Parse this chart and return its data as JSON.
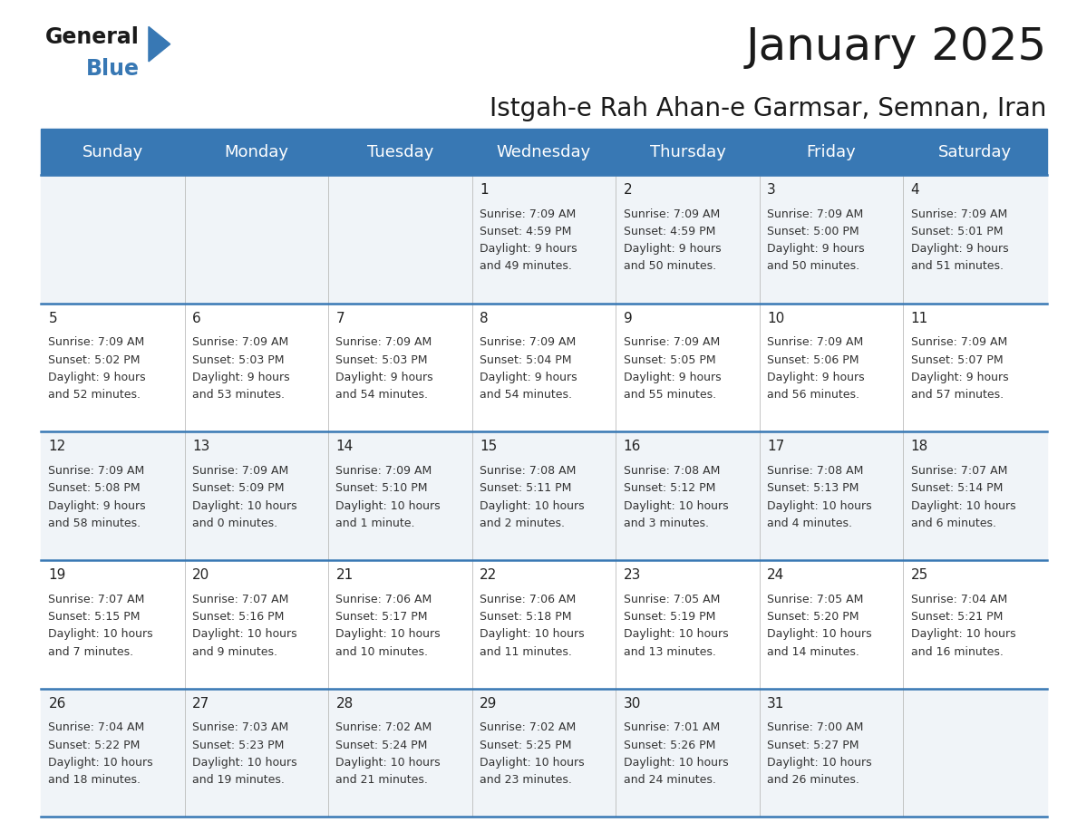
{
  "title": "January 2025",
  "subtitle": "Istgah-e Rah Ahan-e Garmsar, Semnan, Iran",
  "header_color": "#3878b4",
  "header_text_color": "#ffffff",
  "days_of_week": [
    "Sunday",
    "Monday",
    "Tuesday",
    "Wednesday",
    "Thursday",
    "Friday",
    "Saturday"
  ],
  "background_color": "#ffffff",
  "cell_bg_even": "#f0f4f8",
  "cell_bg_odd": "#ffffff",
  "separator_color": "#3878b4",
  "day_number_color": "#222222",
  "info_text_color": "#333333",
  "calendar_data": [
    {
      "day": 1,
      "col": 3,
      "row": 0,
      "sunrise": "7:09 AM",
      "sunset": "4:59 PM",
      "daylight_hours": 9,
      "daylight_minutes": 49
    },
    {
      "day": 2,
      "col": 4,
      "row": 0,
      "sunrise": "7:09 AM",
      "sunset": "4:59 PM",
      "daylight_hours": 9,
      "daylight_minutes": 50
    },
    {
      "day": 3,
      "col": 5,
      "row": 0,
      "sunrise": "7:09 AM",
      "sunset": "5:00 PM",
      "daylight_hours": 9,
      "daylight_minutes": 50
    },
    {
      "day": 4,
      "col": 6,
      "row": 0,
      "sunrise": "7:09 AM",
      "sunset": "5:01 PM",
      "daylight_hours": 9,
      "daylight_minutes": 51
    },
    {
      "day": 5,
      "col": 0,
      "row": 1,
      "sunrise": "7:09 AM",
      "sunset": "5:02 PM",
      "daylight_hours": 9,
      "daylight_minutes": 52
    },
    {
      "day": 6,
      "col": 1,
      "row": 1,
      "sunrise": "7:09 AM",
      "sunset": "5:03 PM",
      "daylight_hours": 9,
      "daylight_minutes": 53
    },
    {
      "day": 7,
      "col": 2,
      "row": 1,
      "sunrise": "7:09 AM",
      "sunset": "5:03 PM",
      "daylight_hours": 9,
      "daylight_minutes": 54
    },
    {
      "day": 8,
      "col": 3,
      "row": 1,
      "sunrise": "7:09 AM",
      "sunset": "5:04 PM",
      "daylight_hours": 9,
      "daylight_minutes": 54
    },
    {
      "day": 9,
      "col": 4,
      "row": 1,
      "sunrise": "7:09 AM",
      "sunset": "5:05 PM",
      "daylight_hours": 9,
      "daylight_minutes": 55
    },
    {
      "day": 10,
      "col": 5,
      "row": 1,
      "sunrise": "7:09 AM",
      "sunset": "5:06 PM",
      "daylight_hours": 9,
      "daylight_minutes": 56
    },
    {
      "day": 11,
      "col": 6,
      "row": 1,
      "sunrise": "7:09 AM",
      "sunset": "5:07 PM",
      "daylight_hours": 9,
      "daylight_minutes": 57
    },
    {
      "day": 12,
      "col": 0,
      "row": 2,
      "sunrise": "7:09 AM",
      "sunset": "5:08 PM",
      "daylight_hours": 9,
      "daylight_minutes": 58
    },
    {
      "day": 13,
      "col": 1,
      "row": 2,
      "sunrise": "7:09 AM",
      "sunset": "5:09 PM",
      "daylight_hours": 10,
      "daylight_minutes": 0
    },
    {
      "day": 14,
      "col": 2,
      "row": 2,
      "sunrise": "7:09 AM",
      "sunset": "5:10 PM",
      "daylight_hours": 10,
      "daylight_minutes": 1
    },
    {
      "day": 15,
      "col": 3,
      "row": 2,
      "sunrise": "7:08 AM",
      "sunset": "5:11 PM",
      "daylight_hours": 10,
      "daylight_minutes": 2
    },
    {
      "day": 16,
      "col": 4,
      "row": 2,
      "sunrise": "7:08 AM",
      "sunset": "5:12 PM",
      "daylight_hours": 10,
      "daylight_minutes": 3
    },
    {
      "day": 17,
      "col": 5,
      "row": 2,
      "sunrise": "7:08 AM",
      "sunset": "5:13 PM",
      "daylight_hours": 10,
      "daylight_minutes": 4
    },
    {
      "day": 18,
      "col": 6,
      "row": 2,
      "sunrise": "7:07 AM",
      "sunset": "5:14 PM",
      "daylight_hours": 10,
      "daylight_minutes": 6
    },
    {
      "day": 19,
      "col": 0,
      "row": 3,
      "sunrise": "7:07 AM",
      "sunset": "5:15 PM",
      "daylight_hours": 10,
      "daylight_minutes": 7
    },
    {
      "day": 20,
      "col": 1,
      "row": 3,
      "sunrise": "7:07 AM",
      "sunset": "5:16 PM",
      "daylight_hours": 10,
      "daylight_minutes": 9
    },
    {
      "day": 21,
      "col": 2,
      "row": 3,
      "sunrise": "7:06 AM",
      "sunset": "5:17 PM",
      "daylight_hours": 10,
      "daylight_minutes": 10
    },
    {
      "day": 22,
      "col": 3,
      "row": 3,
      "sunrise": "7:06 AM",
      "sunset": "5:18 PM",
      "daylight_hours": 10,
      "daylight_minutes": 11
    },
    {
      "day": 23,
      "col": 4,
      "row": 3,
      "sunrise": "7:05 AM",
      "sunset": "5:19 PM",
      "daylight_hours": 10,
      "daylight_minutes": 13
    },
    {
      "day": 24,
      "col": 5,
      "row": 3,
      "sunrise": "7:05 AM",
      "sunset": "5:20 PM",
      "daylight_hours": 10,
      "daylight_minutes": 14
    },
    {
      "day": 25,
      "col": 6,
      "row": 3,
      "sunrise": "7:04 AM",
      "sunset": "5:21 PM",
      "daylight_hours": 10,
      "daylight_minutes": 16
    },
    {
      "day": 26,
      "col": 0,
      "row": 4,
      "sunrise": "7:04 AM",
      "sunset": "5:22 PM",
      "daylight_hours": 10,
      "daylight_minutes": 18
    },
    {
      "day": 27,
      "col": 1,
      "row": 4,
      "sunrise": "7:03 AM",
      "sunset": "5:23 PM",
      "daylight_hours": 10,
      "daylight_minutes": 19
    },
    {
      "day": 28,
      "col": 2,
      "row": 4,
      "sunrise": "7:02 AM",
      "sunset": "5:24 PM",
      "daylight_hours": 10,
      "daylight_minutes": 21
    },
    {
      "day": 29,
      "col": 3,
      "row": 4,
      "sunrise": "7:02 AM",
      "sunset": "5:25 PM",
      "daylight_hours": 10,
      "daylight_minutes": 23
    },
    {
      "day": 30,
      "col": 4,
      "row": 4,
      "sunrise": "7:01 AM",
      "sunset": "5:26 PM",
      "daylight_hours": 10,
      "daylight_minutes": 24
    },
    {
      "day": 31,
      "col": 5,
      "row": 4,
      "sunrise": "7:00 AM",
      "sunset": "5:27 PM",
      "daylight_hours": 10,
      "daylight_minutes": 26
    }
  ],
  "num_rows": 5,
  "num_cols": 7,
  "title_fontsize": 36,
  "subtitle_fontsize": 20,
  "header_fontsize": 13,
  "day_num_fontsize": 11,
  "info_fontsize": 9.0,
  "logo_general_fontsize": 17,
  "logo_blue_fontsize": 17
}
